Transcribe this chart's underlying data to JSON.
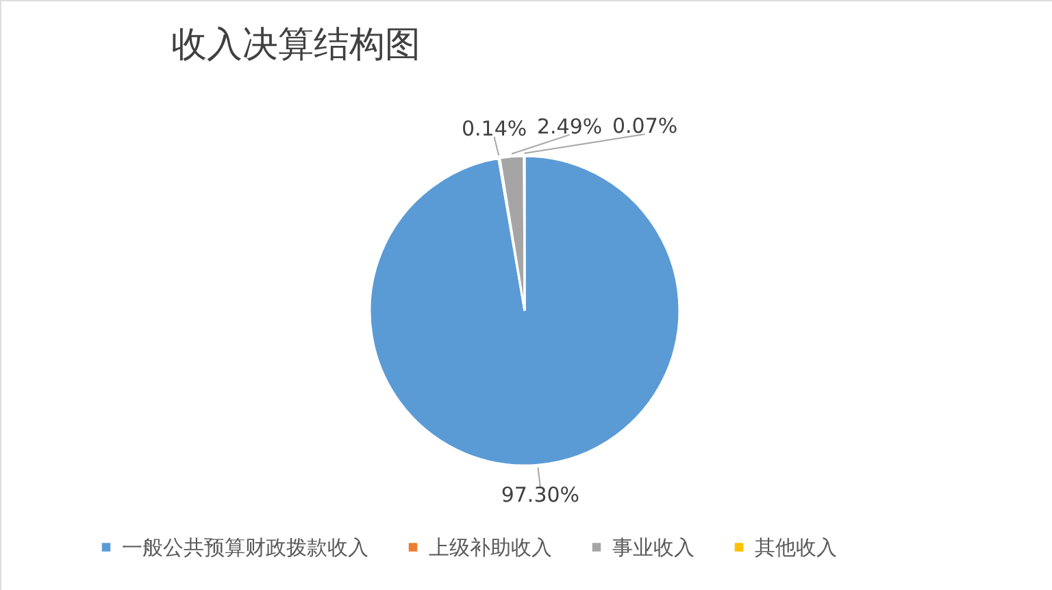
{
  "chart_data": {
    "type": "pie",
    "title": "收入决算结构图",
    "categories": [
      "一般公共预算财政拨款收入",
      "上级补助收入",
      "事业收入",
      "其他收入"
    ],
    "values": [
      97.3,
      0.14,
      2.49,
      0.07
    ],
    "colors": [
      "#5b9bd5",
      "#ed7d31",
      "#a5a5a5",
      "#ffc000"
    ],
    "value_labels": [
      "97.30%",
      "0.14%",
      "2.49%",
      "0.07%"
    ],
    "legend": "bottom"
  }
}
